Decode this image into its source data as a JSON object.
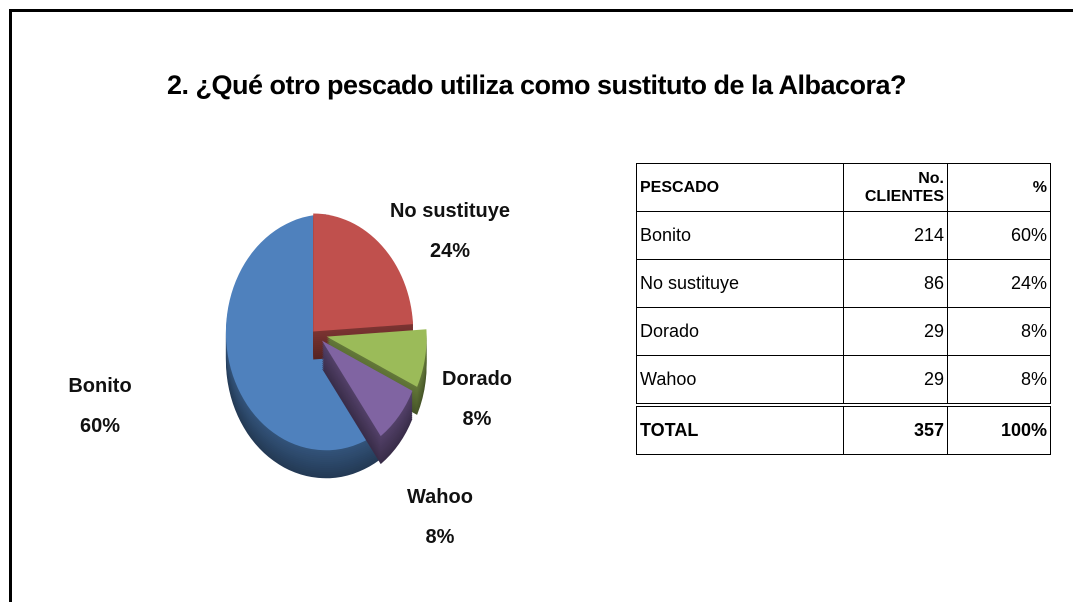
{
  "chart_data": {
    "type": "pie",
    "title": "2. ¿Qué otro pescado utiliza como sustituto de la Albacora?",
    "categories": [
      "Bonito",
      "No sustituye",
      "Dorado",
      "Wahoo"
    ],
    "values": [
      60,
      24,
      8,
      8
    ],
    "value_labels": [
      "60%",
      "24%",
      "8%",
      "8%"
    ],
    "colors": [
      "#4f81bd",
      "#c0504d",
      "#9bbb59",
      "#8064a2"
    ]
  },
  "table": {
    "header": [
      "PESCADO",
      "No. CLIENTES",
      "%"
    ],
    "rows": [
      [
        "Bonito",
        "214",
        "60%"
      ],
      [
        "No sustituye",
        "86",
        "24%"
      ],
      [
        "Dorado",
        "29",
        "8%"
      ],
      [
        "Wahoo",
        "29",
        "8%"
      ]
    ],
    "total": [
      "TOTAL",
      "357",
      "100%"
    ]
  }
}
